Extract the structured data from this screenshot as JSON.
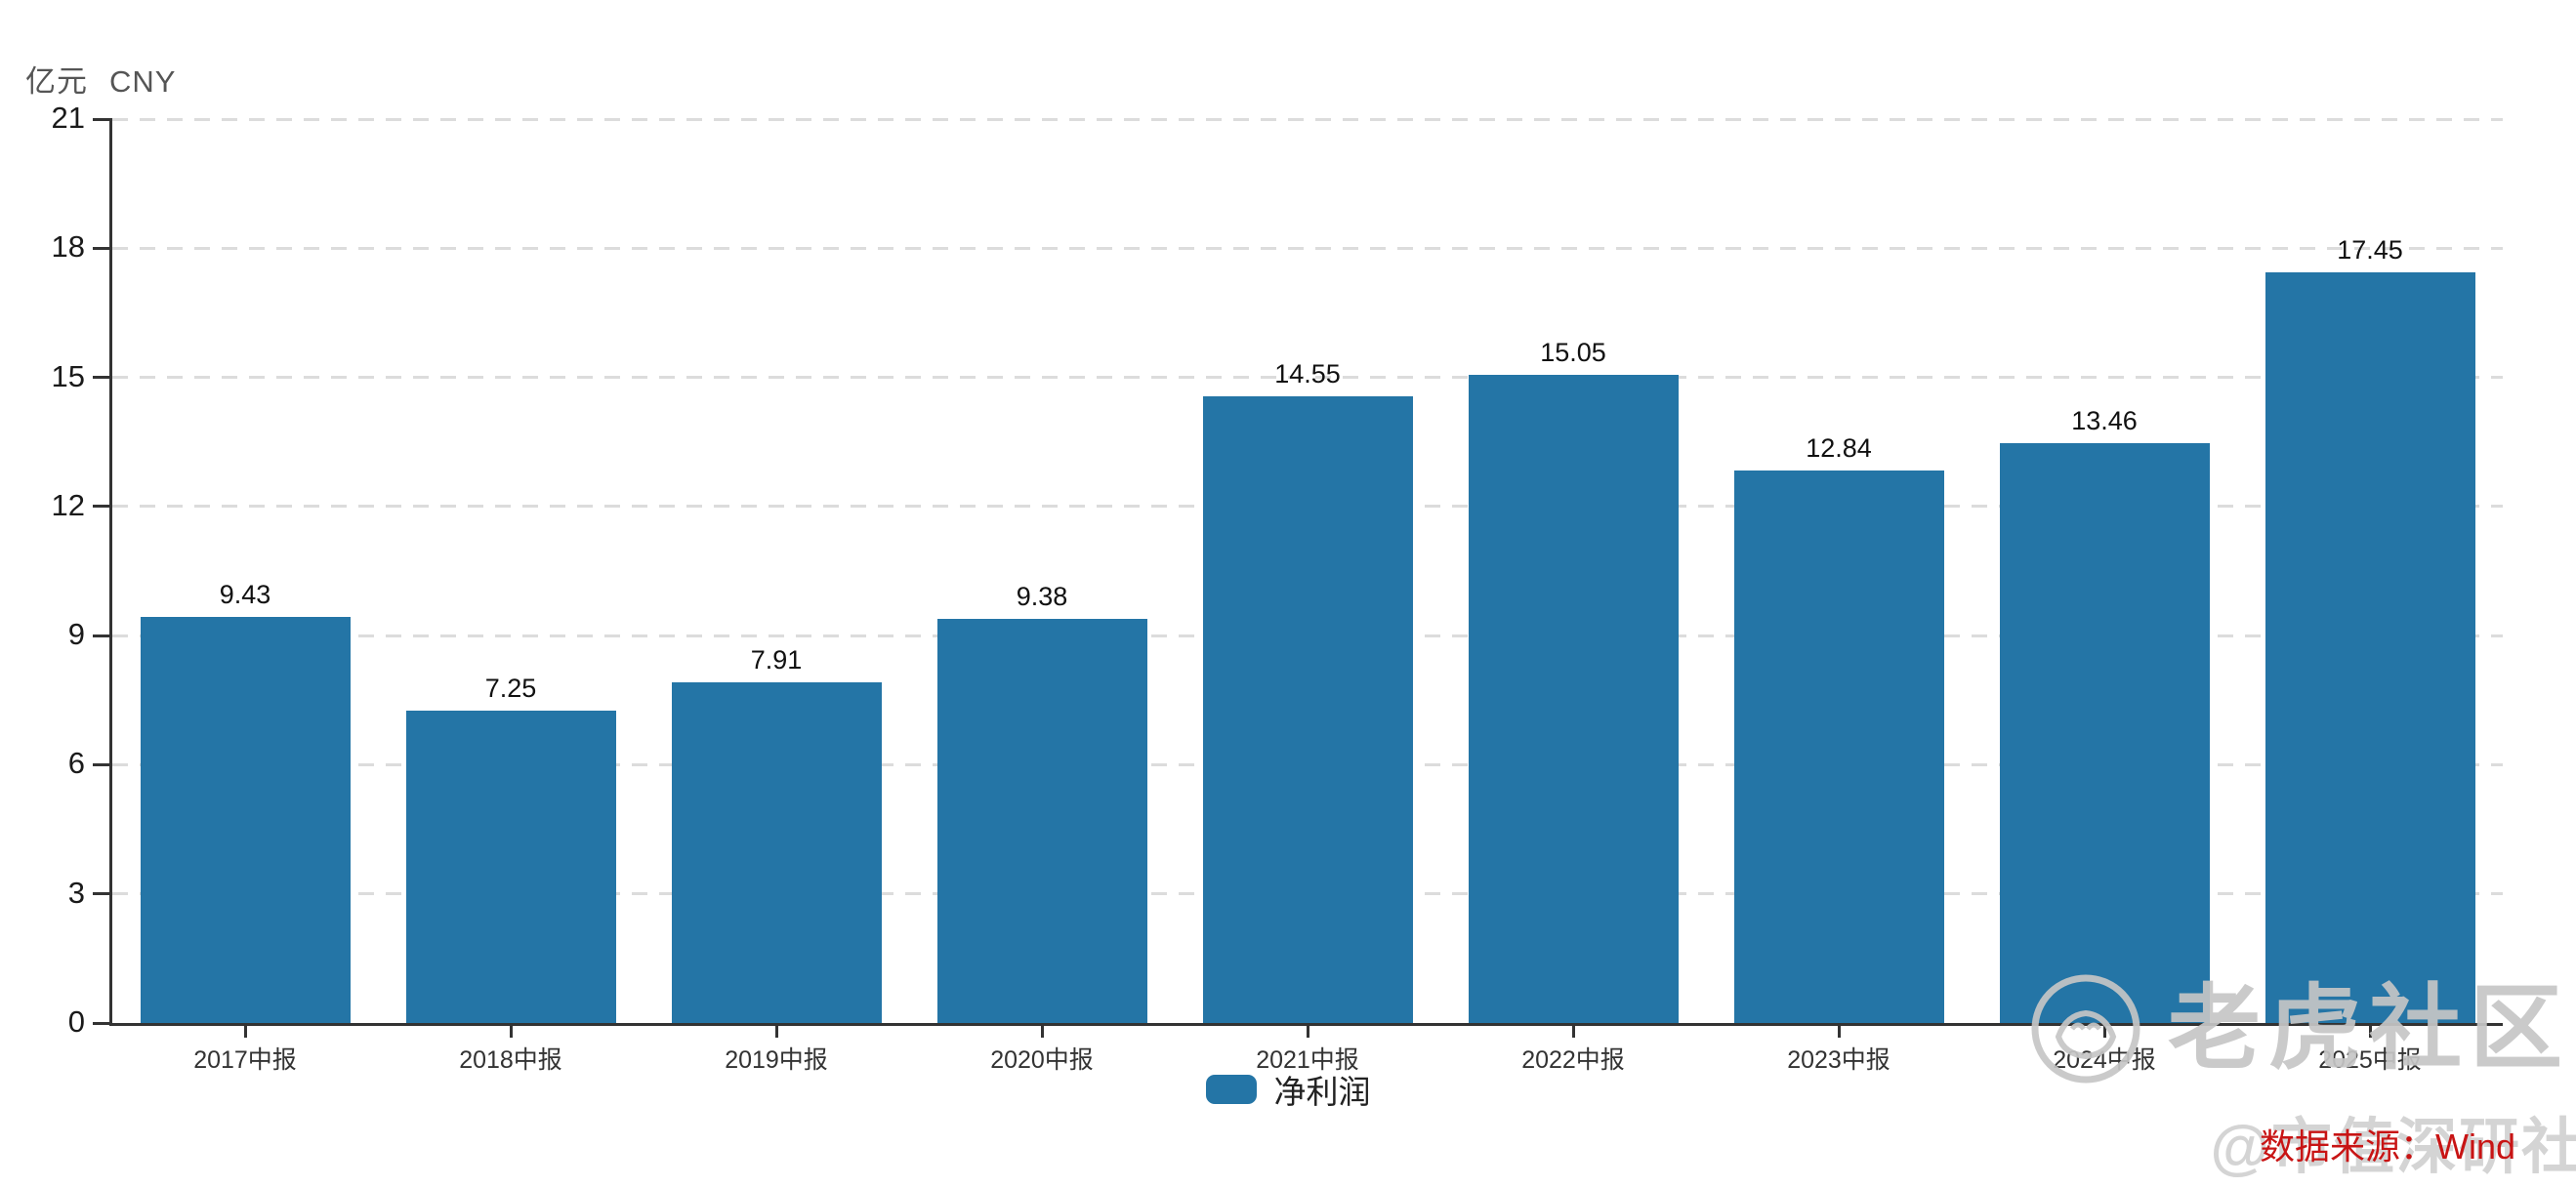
{
  "header": {
    "unit_label": "亿元",
    "currency_label": "CNY"
  },
  "chart_data": {
    "type": "bar",
    "title": "",
    "categories": [
      "2017中报",
      "2018中报",
      "2019中报",
      "2020中报",
      "2021中报",
      "2022中报",
      "2023中报",
      "2024中报",
      "2025中报"
    ],
    "series": [
      {
        "name": "净利润",
        "values": [
          9.43,
          7.25,
          7.91,
          9.38,
          14.55,
          15.05,
          12.84,
          13.46,
          17.45
        ]
      }
    ],
    "value_labels": [
      "9.43",
      "7.25",
      "7.91",
      "9.38",
      "14.55",
      "15.05",
      "12.84",
      "13.46",
      "17.45"
    ],
    "ylabel": "亿元 CNY",
    "xlabel": "",
    "ylim": [
      0,
      21
    ],
    "yticks": [
      0,
      3,
      6,
      9,
      12,
      15,
      18,
      21
    ],
    "grid": "horizontal-dashed",
    "legend_position": "bottom-center",
    "bar_color": "#2475a6"
  },
  "legend": {
    "items": [
      {
        "label": "净利润",
        "color": "#2475a6"
      }
    ]
  },
  "footer": {
    "source_label": "数据来源：Wind"
  },
  "watermarks": {
    "community": "老虎社区",
    "handle": "@市值深研社"
  },
  "colors": {
    "bar": "#2475a6",
    "axis": "#333333",
    "grid": "#dcdcdc",
    "value_label": "#111111",
    "tick_label": "#1a1a1a",
    "source_red": "#c81414",
    "watermark_gray": "#c6c6c6"
  }
}
